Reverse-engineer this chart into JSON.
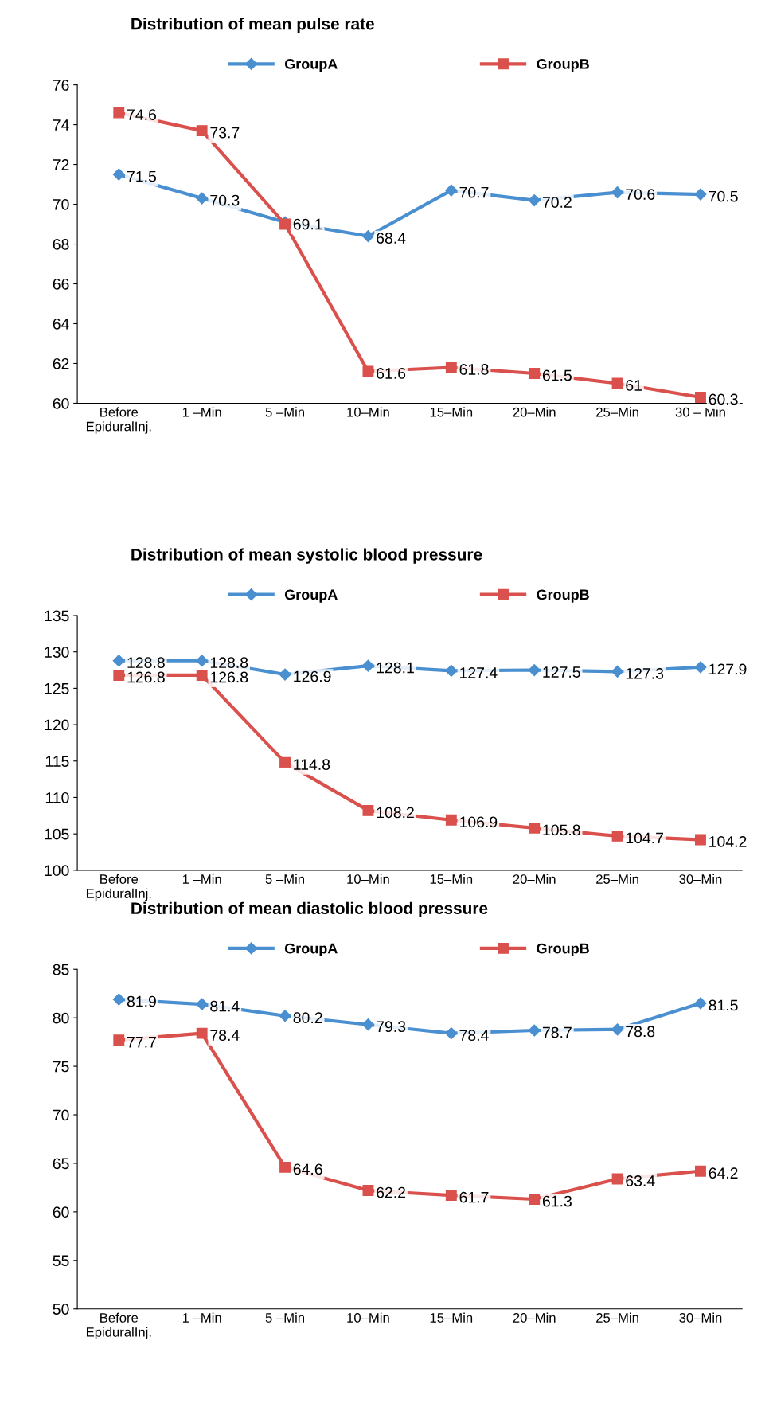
{
  "chart_data": [
    {
      "type": "line",
      "title": "Distribution of mean pulse rate",
      "categories": [
        "Before\nEpiduralInj.",
        "1 –Min",
        "5 –Min",
        "10–Min",
        "15–Min",
        "20–Min",
        "25–Min",
        "30 – Min"
      ],
      "series": [
        {
          "name": "GroupA",
          "color": "#4a8fd0",
          "marker": "diamond",
          "values": [
            71.5,
            70.3,
            69.1,
            68.4,
            70.7,
            70.2,
            70.6,
            70.5
          ]
        },
        {
          "name": "GroupB",
          "color": "#d9504c",
          "marker": "square",
          "values": [
            74.6,
            73.7,
            69.0,
            61.6,
            61.8,
            61.5,
            61,
            60.3
          ],
          "value_labels": [
            "74.6",
            "73.7",
            null,
            "61.6",
            "61.8",
            "61.5",
            "61",
            "60.3"
          ]
        }
      ],
      "ylim": [
        60,
        76
      ],
      "yticks": [
        60,
        62,
        64,
        66,
        68,
        70,
        72,
        74,
        76
      ],
      "data_labels": true,
      "legend": "top",
      "grid": false
    },
    {
      "type": "line",
      "title": "Distribution of mean systolic blood pressure",
      "categories": [
        "Before\nEpiduralInj.",
        "1 –Min",
        "5 –Min",
        "10–Min",
        "15–Min",
        "20–Min",
        "25–Min",
        "30–Min"
      ],
      "series": [
        {
          "name": "GroupA",
          "color": "#4a8fd0",
          "marker": "diamond",
          "values": [
            128.8,
            128.8,
            126.9,
            128.1,
            127.4,
            127.5,
            127.3,
            127.9
          ]
        },
        {
          "name": "GroupB",
          "color": "#d9504c",
          "marker": "square",
          "values": [
            126.8,
            126.8,
            114.8,
            108.2,
            106.9,
            105.8,
            104.7,
            104.2
          ]
        }
      ],
      "ylim": [
        100,
        135
      ],
      "yticks": [
        100,
        105,
        110,
        115,
        120,
        125,
        130,
        135
      ],
      "data_labels": true,
      "legend": "top",
      "grid": false
    },
    {
      "type": "line",
      "title": "Distribution of mean diastolic blood pressure",
      "categories": [
        "Before\nEpiduralInj.",
        "1 –Min",
        "5 –Min",
        "10–Min",
        "15–Min",
        "20–Min",
        "25–Min",
        "30–Min"
      ],
      "series": [
        {
          "name": "GroupA",
          "color": "#4a8fd0",
          "marker": "diamond",
          "values": [
            81.9,
            81.4,
            80.2,
            79.3,
            78.4,
            78.7,
            78.8,
            81.5
          ]
        },
        {
          "name": "GroupB",
          "color": "#d9504c",
          "marker": "square",
          "values": [
            77.7,
            78.4,
            64.6,
            62.2,
            61.7,
            61.3,
            63.4,
            64.2
          ]
        }
      ],
      "ylim": [
        50,
        85
      ],
      "yticks": [
        50,
        55,
        60,
        65,
        70,
        75,
        80,
        85
      ],
      "data_labels": true,
      "legend": "top",
      "grid": false
    }
  ]
}
